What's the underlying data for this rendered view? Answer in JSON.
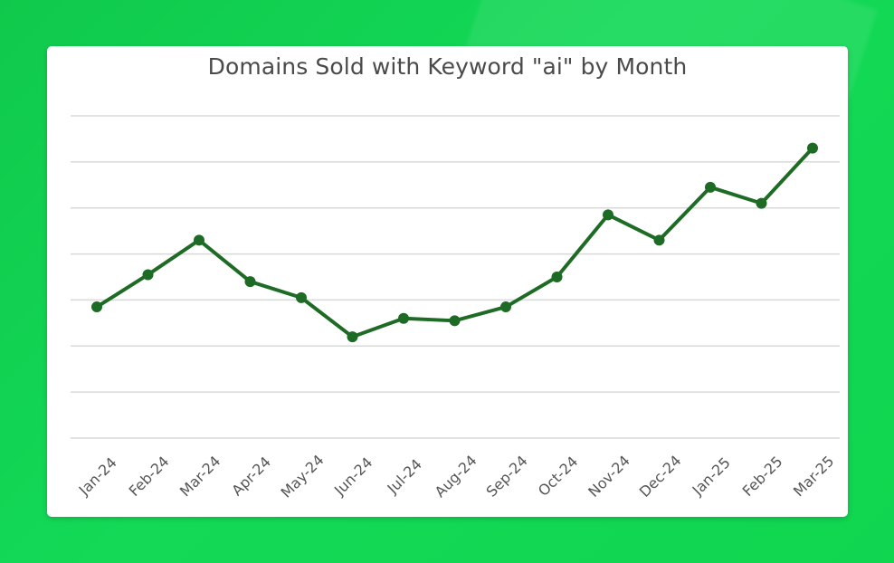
{
  "chart_data": {
    "type": "line",
    "title": "Domains Sold with Keyword \"ai\" by Month",
    "categories": [
      "Jan-24",
      "Feb-24",
      "Mar-24",
      "Apr-24",
      "May-24",
      "Jun-24",
      "Jul-24",
      "Aug-24",
      "Sep-24",
      "Oct-24",
      "Nov-24",
      "Dec-24",
      "Jan-25",
      "Feb-25",
      "Mar-25"
    ],
    "series": [
      {
        "values": [
          2.85,
          3.55,
          4.3,
          3.4,
          3.05,
          2.2,
          2.6,
          2.55,
          2.85,
          3.5,
          4.85,
          4.3,
          5.45,
          5.1,
          6.3
        ],
        "color": "#1d6b24"
      }
    ],
    "ylim": [
      0,
      7
    ],
    "grid": true,
    "y_tick_labels_visible": false,
    "legend": "none",
    "colors": {
      "background": "#13d957",
      "card": "#ffffff",
      "title": "#4a4a4a",
      "gridline": "#d9d9d9",
      "tick_label": "#555555",
      "series": "#1d6b24"
    }
  }
}
